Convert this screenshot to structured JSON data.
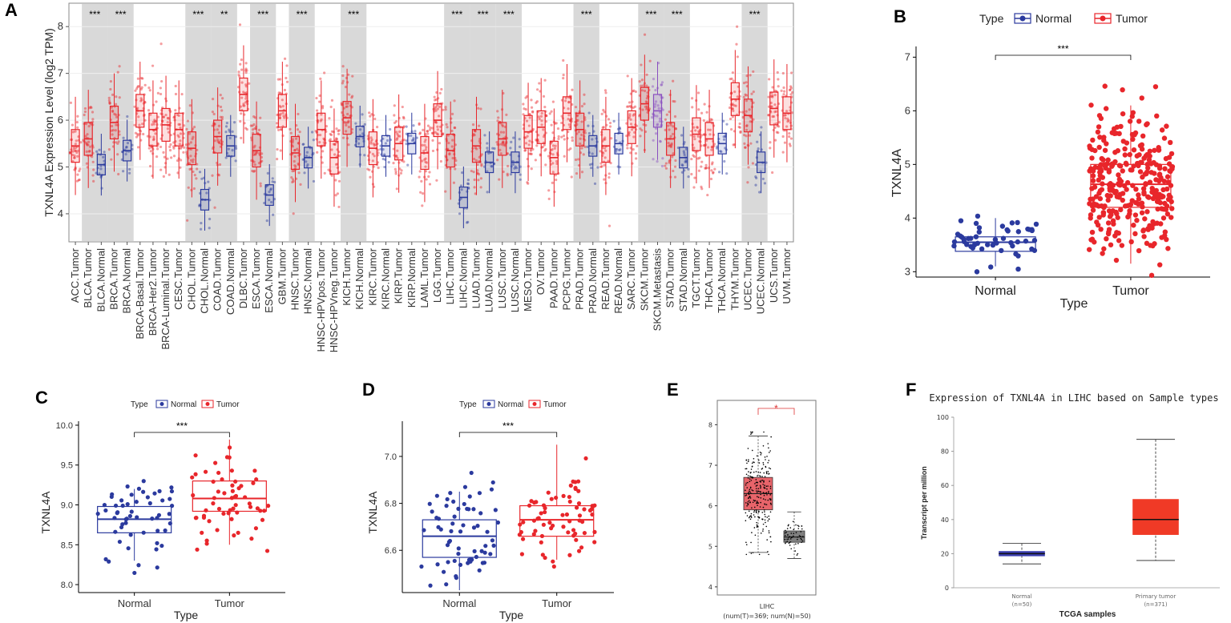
{
  "panel_labels": [
    "A",
    "B",
    "C",
    "D",
    "E",
    "F"
  ],
  "chart_data": [
    {
      "panel": "A",
      "type": "box",
      "ylabel": "TXNL4A Expression Level (log2 TPM)",
      "yticks": [
        4,
        5,
        6,
        7,
        8
      ],
      "ylim": [
        3.4,
        8.5
      ],
      "categories": [
        "ACC.Tumor",
        "BLCA.Tumor",
        "BLCA.Normal",
        "BRCA.Tumor",
        "BRCA.Normal",
        "BRCA-Basal.Tumor",
        "BRCA-Her2.Tumor",
        "BRCA-Luminal.Tumor",
        "CESC.Tumor",
        "CHOL.Tumor",
        "CHOL.Normal",
        "COAD.Tumor",
        "COAD.Normal",
        "DLBC.Tumor",
        "ESCA.Tumor",
        "ESCA.Normal",
        "GBM.Tumor",
        "HNSC.Tumor",
        "HNSC.Normal",
        "HNSC-HPVpos.Tumor",
        "HNSC-HPVneg.Tumor",
        "KICH.Tumor",
        "KICH.Normal",
        "KIRC.Tumor",
        "KIRC.Normal",
        "KIRP.Tumor",
        "KIRP.Normal",
        "LAML.Tumor",
        "LGG.Tumor",
        "LIHC.Tumor",
        "LIHC.Normal",
        "LUAD.Tumor",
        "LUAD.Normal",
        "LUSC.Tumor",
        "LUSC.Normal",
        "MESO.Tumor",
        "OV.Tumor",
        "PAAD.Tumor",
        "PCPG.Tumor",
        "PRAD.Tumor",
        "PRAD.Normal",
        "READ.Tumor",
        "READ.Normal",
        "SARC.Tumor",
        "SKCM.Tumor",
        "SKCM.Metastasis",
        "STAD.Tumor",
        "STAD.Normal",
        "TGCT.Tumor",
        "THCA.Tumor",
        "THCA.Normal",
        "THYM.Tumor",
        "UCEC.Tumor",
        "UCEC.Normal",
        "UCS.Tumor",
        "UVM.Tumor"
      ],
      "medians": [
        5.45,
        5.6,
        5.05,
        5.95,
        5.35,
        6.2,
        5.8,
        5.9,
        5.8,
        5.4,
        4.3,
        5.65,
        5.45,
        6.55,
        5.35,
        4.4,
        6.2,
        5.3,
        5.2,
        5.8,
        5.2,
        6.05,
        5.65,
        5.4,
        5.45,
        5.5,
        5.5,
        5.3,
        6.0,
        5.35,
        4.35,
        5.45,
        5.1,
        5.6,
        5.1,
        5.75,
        5.85,
        5.2,
        6.15,
        5.8,
        5.45,
        5.45,
        5.5,
        5.85,
        6.35,
        6.2,
        5.6,
        5.2,
        5.7,
        5.6,
        5.5,
        6.45,
        6.1,
        5.1,
        6.25,
        6.15
      ],
      "shaded_groups": [
        "BLCA",
        "BRCA",
        "CHOL",
        "COAD",
        "ESCA",
        "HNSC",
        "KICH",
        "LIHC",
        "LUAD",
        "LUSC",
        "PRAD",
        "SKCM",
        "STAD",
        "UCEC"
      ],
      "significance": [
        "***",
        "***",
        "***",
        "**",
        "***",
        "***",
        "***",
        "***",
        "***",
        "***",
        "***",
        "***",
        "***",
        "***"
      ]
    },
    {
      "panel": "B",
      "type": "box",
      "legend_title": "Type",
      "legend": [
        "Normal",
        "Tumor"
      ],
      "categories": [
        "Normal",
        "Tumor"
      ],
      "xlabel": "Type",
      "ylabel": "TXNL4A",
      "ylim": [
        2.9,
        7.2
      ],
      "yticks": [
        3,
        4,
        5,
        6,
        7
      ],
      "boxes": [
        {
          "q1": 3.38,
          "median": 3.55,
          "q3": 3.65,
          "lo": 3.1,
          "hi": 4.0
        },
        {
          "q1": 4.2,
          "median": 4.63,
          "q3": 5.0,
          "lo": 3.15,
          "hi": 6.1
        }
      ],
      "significance": "***"
    },
    {
      "panel": "C",
      "type": "box",
      "legend_title": "Type",
      "legend": [
        "Normal",
        "Tumor"
      ],
      "categories": [
        "Normal",
        "Tumor"
      ],
      "xlabel": "Type",
      "ylabel": "TXNL4A",
      "ylim": [
        7.9,
        10.05
      ],
      "yticks": [
        8.0,
        8.5,
        9.0,
        9.5,
        10.0
      ],
      "boxes": [
        {
          "q1": 8.65,
          "median": 8.82,
          "q3": 8.98,
          "lo": 8.3,
          "hi": 9.2
        },
        {
          "q1": 8.92,
          "median": 9.08,
          "q3": 9.3,
          "lo": 8.5,
          "hi": 9.82
        }
      ],
      "significance": "***"
    },
    {
      "panel": "D",
      "type": "box",
      "legend_title": "Type",
      "legend": [
        "Normal",
        "Tumor"
      ],
      "categories": [
        "Normal",
        "Tumor"
      ],
      "xlabel": "Type",
      "ylabel": "TXNL4A",
      "ylim": [
        6.42,
        7.15
      ],
      "yticks": [
        6.6,
        6.8,
        7.0
      ],
      "boxes": [
        {
          "q1": 6.57,
          "median": 6.66,
          "q3": 6.73,
          "lo": 6.43,
          "hi": 6.85
        },
        {
          "q1": 6.66,
          "median": 6.73,
          "q3": 6.79,
          "lo": 6.56,
          "hi": 7.05
        }
      ],
      "significance": "***"
    },
    {
      "panel": "E",
      "type": "box",
      "ylim": [
        3.8,
        8.6
      ],
      "yticks": [
        4,
        5,
        6,
        7,
        8
      ],
      "xlabel": "LIHC",
      "xlabel2": "(num(T)=369; num(N)=50)",
      "boxes": [
        {
          "group": "Tumor",
          "q1": 5.9,
          "median": 6.3,
          "q3": 6.7,
          "lo": 4.85,
          "hi": 7.72,
          "color": "#e8646a"
        },
        {
          "group": "Normal",
          "q1": 5.1,
          "median": 5.23,
          "q3": 5.38,
          "lo": 4.7,
          "hi": 5.85,
          "color": "#808080"
        }
      ],
      "significance": "*"
    },
    {
      "panel": "F",
      "type": "box",
      "title": "Expression of TXNL4A in LIHC based on Sample types",
      "ylabel": "Transcript per million",
      "xlabel": "TCGA samples",
      "ylim": [
        0,
        100
      ],
      "yticks": [
        0,
        20,
        40,
        60,
        80,
        100
      ],
      "categories": [
        "Normal",
        "Primary tumor"
      ],
      "counts": [
        "(n=50)",
        "(n=371)"
      ],
      "boxes": [
        {
          "q1": 18.5,
          "median": 20.0,
          "q3": 21.5,
          "lo": 14.0,
          "hi": 26.0,
          "color": "#3b3fb0"
        },
        {
          "q1": 31.0,
          "median": 40.0,
          "q3": 52.0,
          "lo": 16.0,
          "hi": 87.0,
          "color": "#f03a26"
        }
      ]
    }
  ],
  "colors": {
    "normal": "#2b3a9e",
    "tumor": "#e8262b",
    "metastasis": "#8a4fc0",
    "shade": "#d9d9d9"
  }
}
